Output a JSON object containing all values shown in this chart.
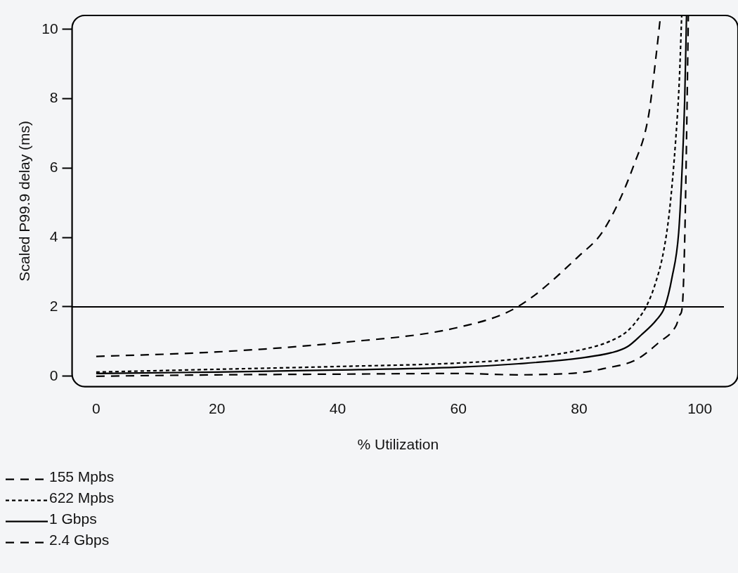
{
  "chart_data": {
    "type": "line",
    "xlabel": "% Utilization",
    "ylabel": "Scaled P99.9 delay (ms)",
    "xlim": [
      -4,
      104
    ],
    "ylim": [
      -0.3,
      10.4
    ],
    "xticks": [
      0,
      20,
      40,
      60,
      80,
      100
    ],
    "yticks": [
      0,
      2,
      4,
      6,
      8,
      10
    ],
    "grid": false,
    "legend": "bottom left",
    "marker": "none",
    "ref_lines": [
      {
        "axis": "y",
        "value": 2,
        "color": "#000000",
        "line_style": "solid"
      }
    ],
    "series": [
      {
        "name": "155 Mpbs",
        "color": "#000000",
        "line_style": "dashed",
        "x": [
          0,
          20,
          40,
          60,
          69.8,
          80,
          84.1,
          89.1,
          91.5,
          92.8,
          93.5
        ],
        "values": [
          0.57,
          0.7,
          0.96,
          1.41,
          2,
          3.47,
          4.22,
          6.1,
          7.5,
          9.3,
          10.4
        ]
      },
      {
        "name": "622 Mpbs",
        "color": "#000000",
        "line_style": "dotted",
        "x": [
          0,
          20,
          40,
          60,
          70,
          80,
          85,
          88,
          90,
          91.1,
          92.5,
          94,
          95,
          96,
          96.6,
          97
        ],
        "values": [
          0.12,
          0.2,
          0.28,
          0.38,
          0.5,
          0.75,
          1.0,
          1.3,
          1.7,
          2,
          2.6,
          3.6,
          4.8,
          6.8,
          8.5,
          10.4
        ]
      },
      {
        "name": "1 Gbps",
        "color": "#000000",
        "line_style": "solid",
        "x": [
          0,
          20,
          40,
          60,
          70,
          80,
          85.4,
          88,
          90.3,
          92.8,
          94.2,
          95.4,
          96.5,
          97.1,
          97.5,
          97.8
        ],
        "values": [
          0.08,
          0.12,
          0.18,
          0.26,
          0.36,
          0.52,
          0.68,
          0.85,
          1.19,
          1.62,
          2,
          2.85,
          4.14,
          6.1,
          8,
          10.4
        ]
      },
      {
        "name": "2.4 Gbps",
        "color": "#000000",
        "line_style": "dashed",
        "x": [
          0,
          20,
          40,
          60,
          70,
          75.7,
          80,
          84.1,
          89.5,
          93.2,
          96.1,
          96.7,
          97.1,
          97.5,
          97.8,
          98.1
        ],
        "values": [
          0.0,
          0.04,
          0.06,
          0.08,
          0.04,
          0.06,
          0.1,
          0.22,
          0.48,
          0.97,
          1.47,
          1.77,
          2,
          3.93,
          6.8,
          10.4
        ]
      }
    ]
  }
}
